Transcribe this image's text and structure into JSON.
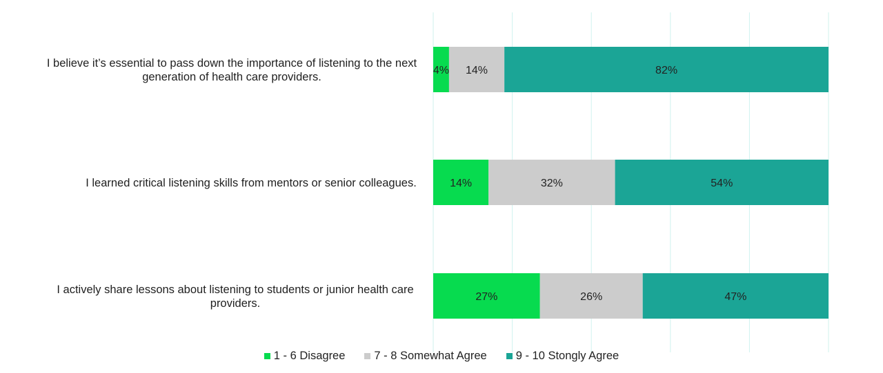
{
  "chart_data": {
    "type": "bar",
    "orientation": "horizontal",
    "stacked": true,
    "categories": [
      "I believe it’s essential to pass down the importance of listening to the next generation of health care providers.",
      "I learned critical listening skills from mentors or senior colleagues.",
      "I actively share lessons about listening to students or junior health care providers."
    ],
    "series": [
      {
        "name": "1 - 6 Disagree",
        "color": "#07DB4F",
        "values": [
          4,
          14,
          27
        ],
        "labels": [
          "4%",
          "14%",
          "27%"
        ]
      },
      {
        "name": "7 - 8 Somewhat Agree",
        "color": "#CCCCCC",
        "values": [
          14,
          32,
          26
        ],
        "labels": [
          "14%",
          "32%",
          "26%"
        ]
      },
      {
        "name": "9 - 10 Stongly Agree",
        "color": "#1BA596",
        "values": [
          82,
          54,
          47
        ],
        "labels": [
          "82%",
          "54%",
          "47%"
        ]
      }
    ],
    "xlim": [
      0,
      100
    ],
    "grid": true,
    "gridline_color": "#CFF2EE",
    "legend_position": "bottom"
  }
}
